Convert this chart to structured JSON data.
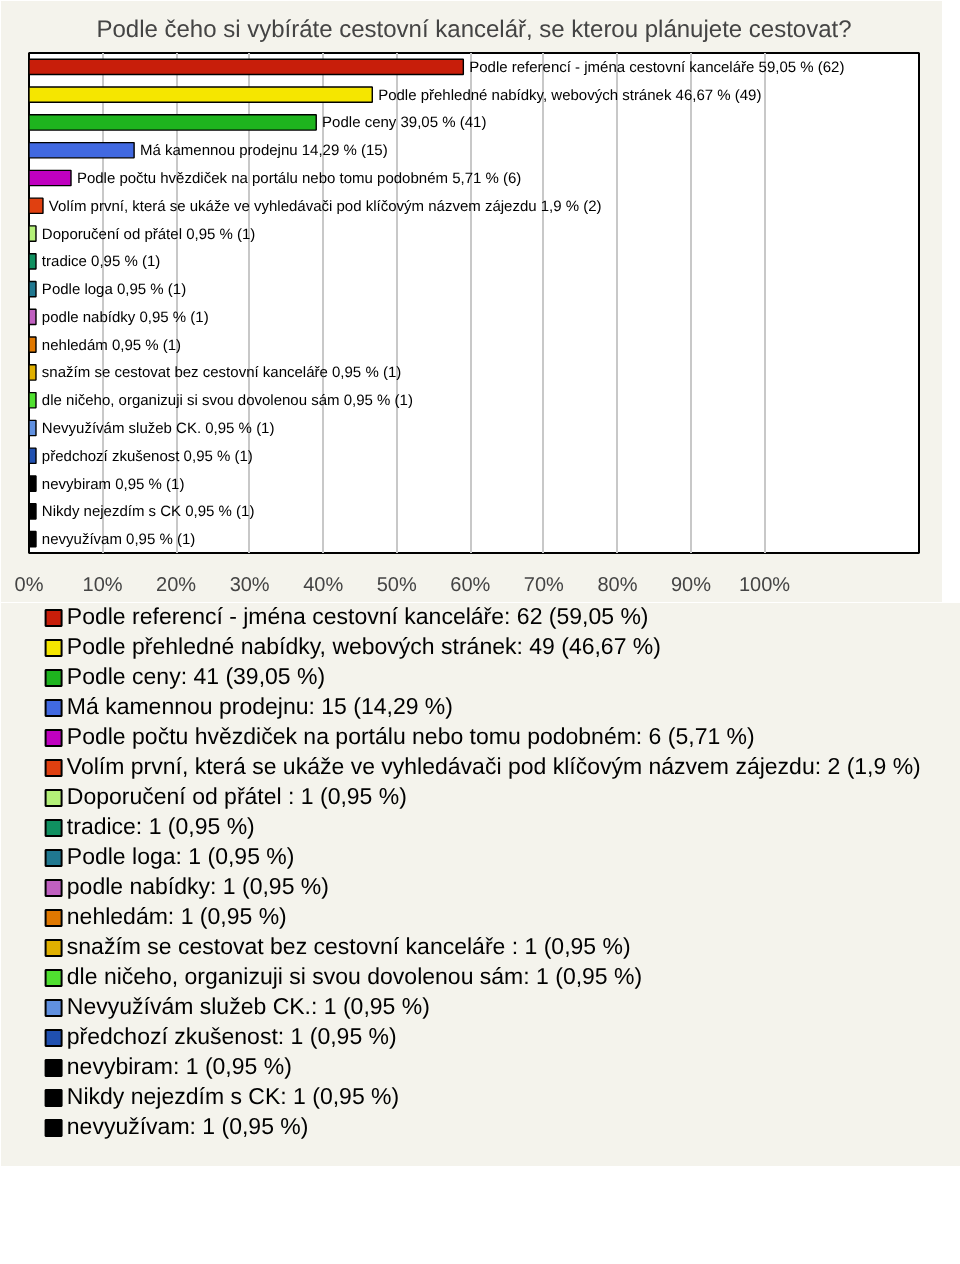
{
  "chart_data": {
    "type": "bar",
    "orientation": "horizontal",
    "title": "Podle čeho si vybíráte cestovní kancelář, se kterou plánujete cestovat?",
    "categories": [
      null,
      null,
      null,
      null,
      null,
      null,
      null,
      null,
      null,
      null,
      null,
      null,
      null,
      null,
      null,
      null,
      null,
      null
    ],
    "xlim": [
      0,
      121
    ],
    "xticks": [
      {
        "value": 0,
        "label": "0%"
      },
      {
        "value": 10,
        "label": "10%"
      },
      {
        "value": 20,
        "label": "20%"
      },
      {
        "value": 30,
        "label": "30%"
      },
      {
        "value": 40,
        "label": "40%"
      },
      {
        "value": 50,
        "label": "50%"
      },
      {
        "value": 60,
        "label": "60%"
      },
      {
        "value": 70,
        "label": "70%"
      },
      {
        "value": 80,
        "label": "80%"
      },
      {
        "value": 90,
        "label": "90%"
      },
      {
        "value": 100,
        "label": "100%"
      }
    ],
    "grid": "x",
    "legend": "bottom",
    "tick_labels": "x",
    "series": [
      {
        "name": "Podle referencí - jména cestovní kanceláře: 62 (59,05 %)",
        "color": "#c81e0a",
        "values": [
          59.05,
          null,
          null,
          null,
          null,
          null,
          null,
          null,
          null,
          null,
          null,
          null,
          null,
          null,
          null,
          null,
          null,
          null
        ],
        "value_labels": [
          "Podle referencí - jména cestovní kanceláře 59,05 % (62)",
          null,
          null,
          null,
          null,
          null,
          null,
          null,
          null,
          null,
          null,
          null,
          null,
          null,
          null,
          null,
          null,
          null
        ]
      },
      {
        "name": "Podle přehledné nabídky, webových stránek: 49 (46,67 %)",
        "color": "#f5e600",
        "values": [
          null,
          46.67,
          null,
          null,
          null,
          null,
          null,
          null,
          null,
          null,
          null,
          null,
          null,
          null,
          null,
          null,
          null,
          null
        ],
        "value_labels": [
          null,
          "Podle přehledné nabídky, webových stránek 46,67 % (49)",
          null,
          null,
          null,
          null,
          null,
          null,
          null,
          null,
          null,
          null,
          null,
          null,
          null,
          null,
          null,
          null
        ]
      },
      {
        "name": "Podle ceny: 41 (39,05 %)",
        "color": "#1eb41e",
        "values": [
          null,
          null,
          39.05,
          null,
          null,
          null,
          null,
          null,
          null,
          null,
          null,
          null,
          null,
          null,
          null,
          null,
          null,
          null
        ],
        "value_labels": [
          null,
          null,
          "Podle ceny 39,05 % (41)",
          null,
          null,
          null,
          null,
          null,
          null,
          null,
          null,
          null,
          null,
          null,
          null,
          null,
          null,
          null
        ]
      },
      {
        "name": "Má kamennou prodejnu: 15 (14,29 %)",
        "color": "#4169e1",
        "values": [
          null,
          null,
          null,
          14.29,
          null,
          null,
          null,
          null,
          null,
          null,
          null,
          null,
          null,
          null,
          null,
          null,
          null,
          null
        ],
        "value_labels": [
          null,
          null,
          null,
          "Má kamennou prodejnu 14,29 % (15)",
          null,
          null,
          null,
          null,
          null,
          null,
          null,
          null,
          null,
          null,
          null,
          null,
          null,
          null
        ]
      },
      {
        "name": "Podle počtu hvězdiček na portálu nebo tomu podobném: 6 (5,71 %)",
        "color": "#c000c0",
        "values": [
          null,
          null,
          null,
          null,
          5.71,
          null,
          null,
          null,
          null,
          null,
          null,
          null,
          null,
          null,
          null,
          null,
          null,
          null
        ],
        "value_labels": [
          null,
          null,
          null,
          null,
          "Podle počtu hvězdiček na portálu nebo tomu podobném 5,71 % (6)",
          null,
          null,
          null,
          null,
          null,
          null,
          null,
          null,
          null,
          null,
          null,
          null,
          null
        ]
      },
      {
        "name": "Volím první, která se ukáže ve vyhledávači pod klíčovým názvem zájezdu: 2 (1,9 %)",
        "color": "#e04010",
        "values": [
          null,
          null,
          null,
          null,
          null,
          1.9,
          null,
          null,
          null,
          null,
          null,
          null,
          null,
          null,
          null,
          null,
          null,
          null
        ],
        "value_labels": [
          null,
          null,
          null,
          null,
          null,
          "Volím první, která se ukáže ve vyhledávači pod klíčovým názvem zájezdu 1,9 % (2)",
          null,
          null,
          null,
          null,
          null,
          null,
          null,
          null,
          null,
          null,
          null,
          null
        ]
      },
      {
        "name": "Doporučení od přátel : 1 (0,95 %)",
        "color": "#b4f078",
        "values": [
          null,
          null,
          null,
          null,
          null,
          null,
          0.95,
          null,
          null,
          null,
          null,
          null,
          null,
          null,
          null,
          null,
          null,
          null
        ],
        "value_labels": [
          null,
          null,
          null,
          null,
          null,
          null,
          "Doporučení od přátel  0,95 % (1)",
          null,
          null,
          null,
          null,
          null,
          null,
          null,
          null,
          null,
          null,
          null
        ]
      },
      {
        "name": "tradice: 1 (0,95 %)",
        "color": "#109060",
        "values": [
          null,
          null,
          null,
          null,
          null,
          null,
          null,
          0.95,
          null,
          null,
          null,
          null,
          null,
          null,
          null,
          null,
          null,
          null
        ],
        "value_labels": [
          null,
          null,
          null,
          null,
          null,
          null,
          null,
          "tradice 0,95 % (1)",
          null,
          null,
          null,
          null,
          null,
          null,
          null,
          null,
          null,
          null
        ]
      },
      {
        "name": "Podle loga: 1 (0,95 %)",
        "color": "#207890",
        "values": [
          null,
          null,
          null,
          null,
          null,
          null,
          null,
          null,
          0.95,
          null,
          null,
          null,
          null,
          null,
          null,
          null,
          null,
          null
        ],
        "value_labels": [
          null,
          null,
          null,
          null,
          null,
          null,
          null,
          null,
          "Podle loga 0,95 % (1)",
          null,
          null,
          null,
          null,
          null,
          null,
          null,
          null,
          null
        ]
      },
      {
        "name": "podle nabídky: 1 (0,95 %)",
        "color": "#c060c0",
        "values": [
          null,
          null,
          null,
          null,
          null,
          null,
          null,
          null,
          null,
          0.95,
          null,
          null,
          null,
          null,
          null,
          null,
          null,
          null
        ],
        "value_labels": [
          null,
          null,
          null,
          null,
          null,
          null,
          null,
          null,
          null,
          "podle nabídky 0,95 % (1)",
          null,
          null,
          null,
          null,
          null,
          null,
          null,
          null
        ]
      },
      {
        "name": "nehledám: 1 (0,95 %)",
        "color": "#e07800",
        "values": [
          null,
          null,
          null,
          null,
          null,
          null,
          null,
          null,
          null,
          null,
          0.95,
          null,
          null,
          null,
          null,
          null,
          null,
          null
        ],
        "value_labels": [
          null,
          null,
          null,
          null,
          null,
          null,
          null,
          null,
          null,
          null,
          "nehledám 0,95 % (1)",
          null,
          null,
          null,
          null,
          null,
          null,
          null
        ]
      },
      {
        "name": "snažím se cestovat bez cestovní kanceláře : 1 (0,95 %)",
        "color": "#e0b000",
        "values": [
          null,
          null,
          null,
          null,
          null,
          null,
          null,
          null,
          null,
          null,
          null,
          0.95,
          null,
          null,
          null,
          null,
          null,
          null
        ],
        "value_labels": [
          null,
          null,
          null,
          null,
          null,
          null,
          null,
          null,
          null,
          null,
          null,
          "snažím se cestovat bez cestovní kanceláře  0,95 % (1)",
          null,
          null,
          null,
          null,
          null,
          null
        ]
      },
      {
        "name": "dle ničeho, organizuji si svou dovolenou sám: 1 (0,95 %)",
        "color": "#50e030",
        "values": [
          null,
          null,
          null,
          null,
          null,
          null,
          null,
          null,
          null,
          null,
          null,
          null,
          0.95,
          null,
          null,
          null,
          null,
          null
        ],
        "value_labels": [
          null,
          null,
          null,
          null,
          null,
          null,
          null,
          null,
          null,
          null,
          null,
          null,
          "dle ničeho, organizuji si svou dovolenou sám 0,95 % (1)",
          null,
          null,
          null,
          null,
          null
        ]
      },
      {
        "name": "Nevyužívám služeb CK.: 1 (0,95 %)",
        "color": "#6090e0",
        "values": [
          null,
          null,
          null,
          null,
          null,
          null,
          null,
          null,
          null,
          null,
          null,
          null,
          null,
          0.95,
          null,
          null,
          null,
          null
        ],
        "value_labels": [
          null,
          null,
          null,
          null,
          null,
          null,
          null,
          null,
          null,
          null,
          null,
          null,
          null,
          "Nevyužívám služeb CK. 0,95 % (1)",
          null,
          null,
          null,
          null
        ]
      },
      {
        "name": "předchozí zkušenost: 1 (0,95 %)",
        "color": "#2050b0",
        "values": [
          null,
          null,
          null,
          null,
          null,
          null,
          null,
          null,
          null,
          null,
          null,
          null,
          null,
          null,
          0.95,
          null,
          null,
          null
        ],
        "value_labels": [
          null,
          null,
          null,
          null,
          null,
          null,
          null,
          null,
          null,
          null,
          null,
          null,
          null,
          null,
          "předchozí zkušenost 0,95 % (1)",
          null,
          null,
          null
        ]
      },
      {
        "name": "nevybiram: 1 (0,95 %)",
        "color": "#000000",
        "values": [
          null,
          null,
          null,
          null,
          null,
          null,
          null,
          null,
          null,
          null,
          null,
          null,
          null,
          null,
          null,
          0.95,
          null,
          null
        ],
        "value_labels": [
          null,
          null,
          null,
          null,
          null,
          null,
          null,
          null,
          null,
          null,
          null,
          null,
          null,
          null,
          null,
          "nevybiram 0,95 % (1)",
          null,
          null
        ]
      },
      {
        "name": "Nikdy nejezdím s CK: 1 (0,95 %)",
        "color": "#000000",
        "values": [
          null,
          null,
          null,
          null,
          null,
          null,
          null,
          null,
          null,
          null,
          null,
          null,
          null,
          null,
          null,
          null,
          0.95,
          null
        ],
        "value_labels": [
          null,
          null,
          null,
          null,
          null,
          null,
          null,
          null,
          null,
          null,
          null,
          null,
          null,
          null,
          null,
          null,
          "Nikdy nejezdím s CK 0,95 % (1)",
          null
        ]
      },
      {
        "name": "nevyužívam: 1 (0,95 %)",
        "color": "#000000",
        "values": [
          null,
          null,
          null,
          null,
          null,
          null,
          null,
          null,
          null,
          null,
          null,
          null,
          null,
          null,
          null,
          null,
          null,
          0.95
        ],
        "value_labels": [
          null,
          null,
          null,
          null,
          null,
          null,
          null,
          null,
          null,
          null,
          null,
          null,
          null,
          null,
          null,
          null,
          null,
          "nevyužívam 0,95 % (1)"
        ]
      }
    ]
  }
}
